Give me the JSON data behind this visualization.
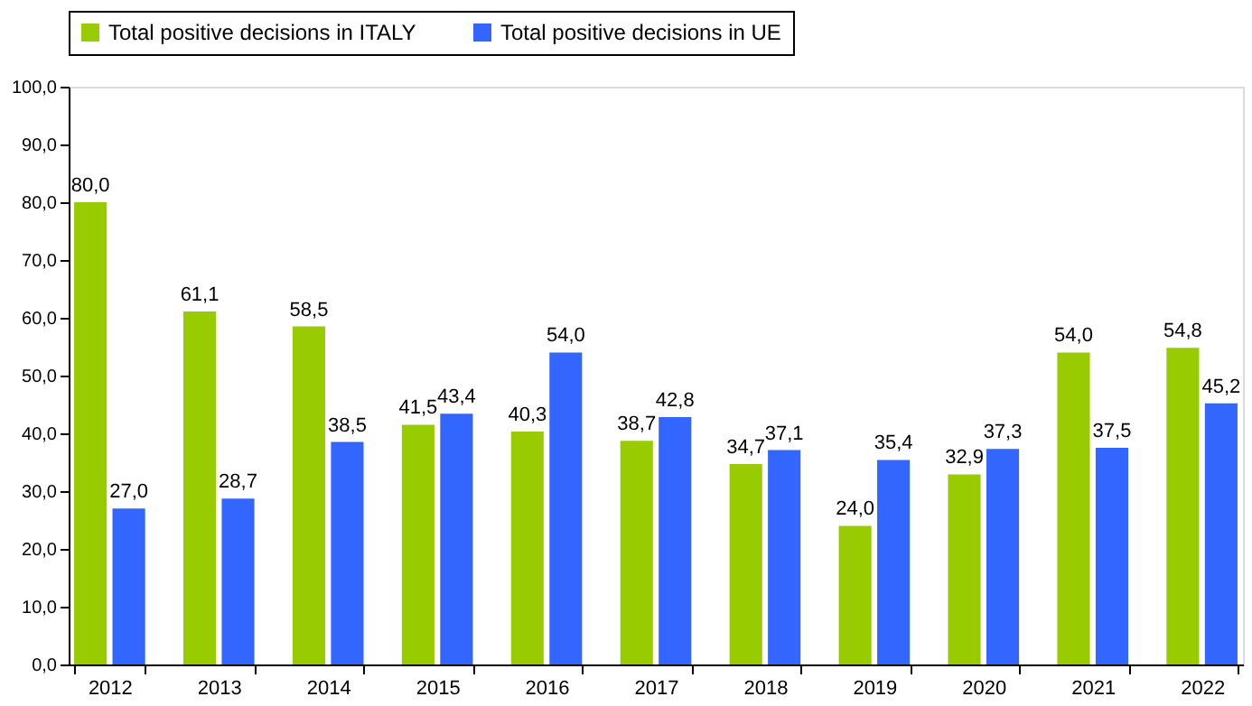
{
  "chart_data": {
    "type": "bar",
    "categories": [
      "2012",
      "2013",
      "2014",
      "2015",
      "2016",
      "2017",
      "2018",
      "2019",
      "2020",
      "2021",
      "2022"
    ],
    "series": [
      {
        "name": "Total positive decisions in ITALY",
        "color": "#99cc00",
        "values": [
          80.0,
          61.1,
          58.5,
          41.5,
          40.3,
          38.7,
          34.7,
          24.0,
          32.9,
          54.0,
          54.8
        ],
        "value_labels": [
          "80,0",
          "61,1",
          "58,5",
          "41,5",
          "40,3",
          "38,7",
          "34,7",
          "24,0",
          "32,9",
          "54,0",
          "54,8"
        ]
      },
      {
        "name": "Total positive decisions in UE",
        "color": "#3366ff",
        "values": [
          27.0,
          28.7,
          38.5,
          43.4,
          54.0,
          42.8,
          37.1,
          35.4,
          37.3,
          37.5,
          45.2
        ],
        "value_labels": [
          "27,0",
          "28,7",
          "38,5",
          "43,4",
          "54,0",
          "42,8",
          "37,1",
          "35,4",
          "37,3",
          "37,5",
          "45,2"
        ]
      }
    ],
    "ylim": [
      0,
      100
    ],
    "yticks": [
      {
        "value": 0,
        "label": "0,0"
      },
      {
        "value": 10,
        "label": "10,0"
      },
      {
        "value": 20,
        "label": "20,0"
      },
      {
        "value": 30,
        "label": "30,0"
      },
      {
        "value": 40,
        "label": "40,0"
      },
      {
        "value": 50,
        "label": "50,0"
      },
      {
        "value": 60,
        "label": "60,0"
      },
      {
        "value": 70,
        "label": "70,0"
      },
      {
        "value": 80,
        "label": "80,0"
      },
      {
        "value": 90,
        "label": "90,0"
      },
      {
        "value": 100,
        "label": "100,0"
      }
    ],
    "legend": "top",
    "grid": false
  }
}
